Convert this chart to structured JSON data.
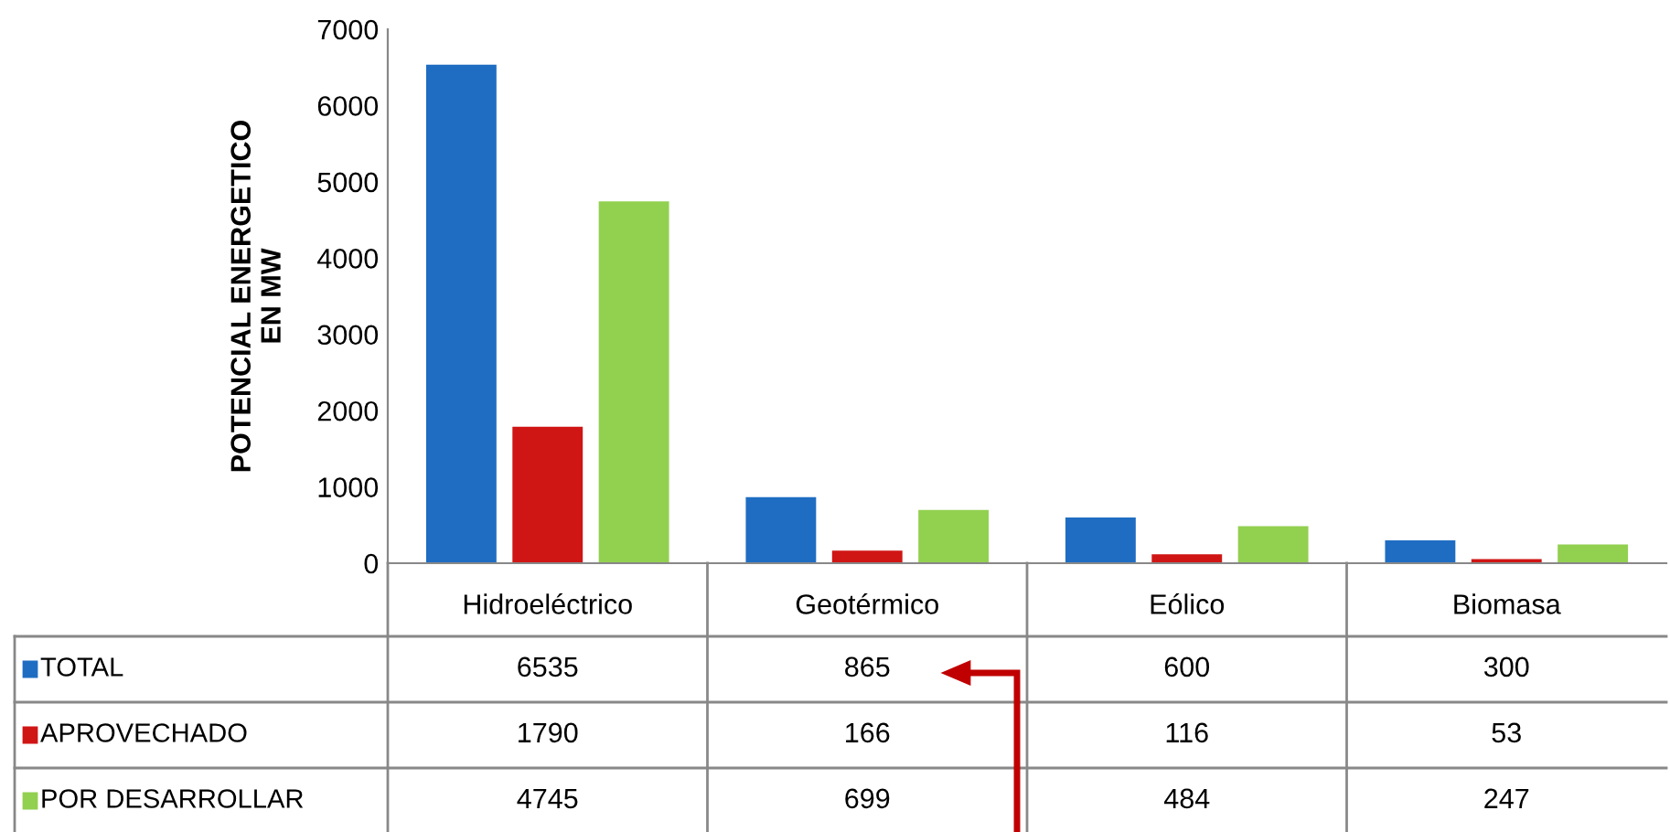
{
  "chart_data": {
    "type": "bar",
    "ylabel": "POTENCIAL ENERGETICO\nEN MW",
    "categories": [
      "Hidroeléctrico",
      "Geotérmico",
      "Eólico",
      "Biomasa"
    ],
    "series": [
      {
        "name": "TOTAL",
        "color": "#1f6dc2",
        "values": [
          6535,
          865,
          600,
          300
        ]
      },
      {
        "name": "APROVECHADO",
        "color": "#d01515",
        "values": [
          1790,
          166,
          116,
          53
        ]
      },
      {
        "name": "POR DESARROLLAR",
        "color": "#92d050",
        "values": [
          4745,
          699,
          484,
          247
        ]
      }
    ],
    "ylim": [
      0,
      7000
    ],
    "yticks": [
      0,
      1000,
      2000,
      3000,
      4000,
      5000,
      6000,
      7000
    ],
    "grid": false,
    "legend": "bottom left",
    "data_labels": true
  }
}
